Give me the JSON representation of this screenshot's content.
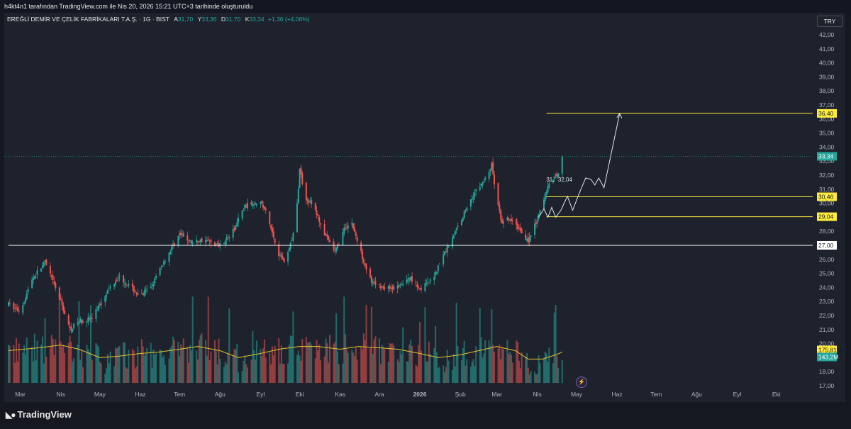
{
  "attribution": "h4kt4n1 tarafından TradingView.com ile Nis 20, 2026 15:21 UTC+3 tarihinde oluşturuldu",
  "legend": {
    "symbol": "EREĞLİ DEMİR VE ÇELİK FABRİKALARI T.A.Ş.",
    "interval": "1G",
    "exchange": "BIST",
    "open_label": "A",
    "open": "31,70",
    "high_label": "Y",
    "high": "33,36",
    "low_label": "D",
    "low": "31,70",
    "close_label": "K",
    "close": "33,34",
    "change": "+1,30 (+4,06%)"
  },
  "currency": "TRY",
  "logo_text": "TradingView",
  "colors": {
    "background": "#1e222d",
    "up": "#26a69a",
    "down": "#ef5350",
    "level_line": "#ffeb3b",
    "white_line": "#ffffff",
    "volume_ma": "#e6c229"
  },
  "chart_data": {
    "type": "candlestick",
    "symbol": "EREĞLİ DEMİR VE ÇELİK FABRİKALARI T.A.Ş.",
    "interval": "1G",
    "exchange": "BIST",
    "currency": "TRY",
    "ylim": [
      17,
      43
    ],
    "y_ticks": [
      "17,00",
      "18,00",
      "19,00",
      "20,00",
      "21,00",
      "22,00",
      "23,00",
      "24,00",
      "25,00",
      "26,00",
      "27,00",
      "28,00",
      "29,00",
      "30,00",
      "31,00",
      "32,00",
      "33,00",
      "34,00",
      "35,00",
      "36,00",
      "37,00",
      "38,00",
      "39,00",
      "40,00",
      "41,00",
      "42,00"
    ],
    "x_ticks": [
      "Mar",
      "Nis",
      "May",
      "Haz",
      "Tem",
      "Ağu",
      "Eyl",
      "Eki",
      "Kas",
      "Ara",
      "2026",
      "Şub",
      "Mar",
      "Nis",
      "May",
      "Haz",
      "Tem",
      "Ağu",
      "Eyl",
      "Eki"
    ],
    "price_path": [
      [
        "2025-02-20",
        22.8
      ],
      [
        "2025-03-01",
        22.3
      ],
      [
        "2025-03-10",
        24.6
      ],
      [
        "2025-03-20",
        25.8
      ],
      [
        "2025-04-01",
        23.0
      ],
      [
        "2025-04-08",
        21.0
      ],
      [
        "2025-04-15",
        21.6
      ],
      [
        "2025-04-25",
        21.8
      ],
      [
        "2025-05-05",
        23.5
      ],
      [
        "2025-05-15",
        24.8
      ],
      [
        "2025-05-25",
        24.0
      ],
      [
        "2025-06-01",
        23.3
      ],
      [
        "2025-06-10",
        24.2
      ],
      [
        "2025-06-20",
        26.0
      ],
      [
        "2025-07-01",
        27.8
      ],
      [
        "2025-07-10",
        27.2
      ],
      [
        "2025-07-20",
        27.4
      ],
      [
        "2025-07-31",
        27.0
      ],
      [
        "2025-08-10",
        27.8
      ],
      [
        "2025-08-20",
        29.8
      ],
      [
        "2025-08-31",
        30.2
      ],
      [
        "2025-09-05",
        29.4
      ],
      [
        "2025-09-15",
        26.4
      ],
      [
        "2025-09-20",
        25.8
      ],
      [
        "2025-09-28",
        28.5
      ],
      [
        "2025-10-01",
        32.5
      ],
      [
        "2025-10-05",
        30.5
      ],
      [
        "2025-10-12",
        29.7
      ],
      [
        "2025-10-20",
        27.8
      ],
      [
        "2025-10-28",
        26.5
      ],
      [
        "2025-11-05",
        28.3
      ],
      [
        "2025-11-10",
        28.6
      ],
      [
        "2025-11-15",
        27.0
      ],
      [
        "2025-11-25",
        24.3
      ],
      [
        "2025-12-05",
        24.0
      ],
      [
        "2025-12-15",
        24.0
      ],
      [
        "2025-12-25",
        24.7
      ],
      [
        "2026-01-01",
        23.9
      ],
      [
        "2026-01-10",
        24.5
      ],
      [
        "2026-01-20",
        26.5
      ],
      [
        "2026-01-31",
        28.5
      ],
      [
        "2026-02-10",
        30.5
      ],
      [
        "2026-02-20",
        31.7
      ],
      [
        "2026-02-25",
        32.7
      ],
      [
        "2026-03-01",
        30.2
      ],
      [
        "2026-03-05",
        28.5
      ],
      [
        "2026-03-10",
        28.9
      ],
      [
        "2026-03-18",
        28.2
      ],
      [
        "2026-03-25",
        27.3
      ],
      [
        "2026-04-01",
        28.8
      ],
      [
        "2026-04-08",
        30.9
      ],
      [
        "2026-04-14",
        32.0
      ],
      [
        "2026-04-17",
        32.04
      ],
      [
        "2026-04-20",
        33.34
      ]
    ],
    "volume_ma_path": [
      [
        "2025-02-20",
        19.5
      ],
      [
        "2025-03-15",
        19.7
      ],
      [
        "2025-04-01",
        19.9
      ],
      [
        "2025-04-15",
        19.6
      ],
      [
        "2025-05-01",
        19.0
      ],
      [
        "2025-05-15",
        19.1
      ],
      [
        "2025-06-01",
        19.3
      ],
      [
        "2025-06-15",
        19.4
      ],
      [
        "2025-07-01",
        19.6
      ],
      [
        "2025-07-15",
        19.8
      ],
      [
        "2025-08-01",
        19.5
      ],
      [
        "2025-08-15",
        19.0
      ],
      [
        "2025-09-01",
        19.3
      ],
      [
        "2025-09-15",
        19.6
      ],
      [
        "2025-10-01",
        19.8
      ],
      [
        "2025-10-15",
        19.8
      ],
      [
        "2025-11-01",
        19.6
      ],
      [
        "2025-11-15",
        19.8
      ],
      [
        "2025-12-01",
        19.7
      ],
      [
        "2025-12-15",
        19.6
      ],
      [
        "2026-01-01",
        19.3
      ],
      [
        "2026-01-15",
        19.0
      ],
      [
        "2026-02-01",
        19.2
      ],
      [
        "2026-02-15",
        19.5
      ],
      [
        "2026-03-01",
        19.8
      ],
      [
        "2026-03-15",
        19.5
      ],
      [
        "2026-03-25",
        18.9
      ],
      [
        "2026-04-05",
        18.9
      ],
      [
        "2026-04-15",
        19.2
      ],
      [
        "2026-04-20",
        19.4
      ]
    ],
    "horizontal_levels": [
      {
        "price": 36.4,
        "label": "36,40",
        "color": "#ffeb3b",
        "from": "2026-04-08"
      },
      {
        "price": 30.46,
        "label": "30,46",
        "color": "#ffeb3b",
        "from": "2026-04-08"
      },
      {
        "price": 29.04,
        "label": "29,04",
        "color": "#ffeb3b",
        "from": "2026-04-08"
      },
      {
        "price": 27.0,
        "label": "27,00",
        "color": "#ffffff",
        "from": "2025-02-20"
      }
    ],
    "current_price": {
      "label": "33,34",
      "price": 33.34,
      "color": "#26a69a"
    },
    "annotations": [
      {
        "text": "31,",
        "date": "2026-04-10",
        "price": 31.55
      },
      {
        "text": "32,04",
        "date": "2026-04-19",
        "price": 31.55
      }
    ],
    "projection_path": [
      [
        "2026-04-02",
        29.0
      ],
      [
        "2026-04-06",
        29.6
      ],
      [
        "2026-04-09",
        29.0
      ],
      [
        "2026-04-12",
        29.7
      ],
      [
        "2026-04-15",
        29.0
      ],
      [
        "2026-04-19",
        29.5
      ],
      [
        "2026-04-24",
        30.5
      ],
      [
        "2026-04-28",
        29.5
      ],
      [
        "2026-05-03",
        30.7
      ],
      [
        "2026-05-08",
        31.8
      ],
      [
        "2026-05-12",
        31.7
      ],
      [
        "2026-05-15",
        31.3
      ],
      [
        "2026-05-18",
        31.8
      ],
      [
        "2026-05-22",
        31.1
      ],
      [
        "2026-06-03",
        36.4
      ]
    ],
    "volume_labels": [
      {
        "text": "175,81M",
        "color": "#ffeb3b"
      },
      {
        "text": "143,2M",
        "color": "#26a69a"
      }
    ]
  }
}
